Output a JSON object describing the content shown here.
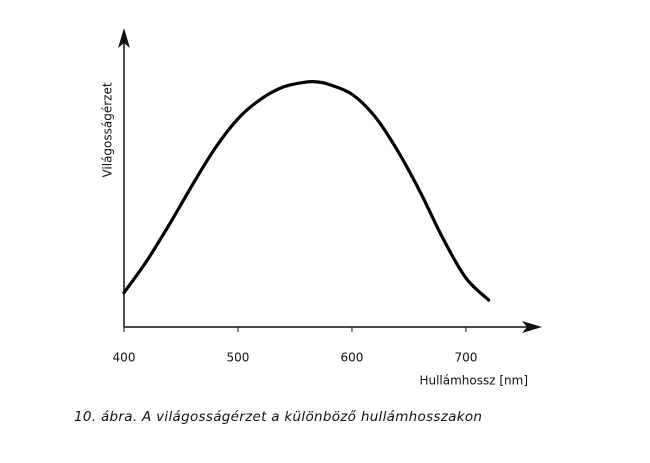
{
  "chart_data": {
    "type": "line",
    "y_label": "Világosságérzet",
    "x_label": "Hullámhossz [nm]",
    "caption": "10. ábra. A világosságérzet a különböző hullámhosszakon",
    "x": [
      400,
      420,
      440,
      460,
      480,
      500,
      520,
      540,
      560,
      570,
      580,
      600,
      620,
      640,
      660,
      680,
      700,
      720
    ],
    "values": [
      0.14,
      0.27,
      0.42,
      0.58,
      0.73,
      0.85,
      0.93,
      0.98,
      1.0,
      1.0,
      0.99,
      0.95,
      0.86,
      0.72,
      0.55,
      0.36,
      0.2,
      0.11
    ],
    "color": "#000000",
    "xlim": [
      400,
      765
    ],
    "xticks": [
      400,
      500,
      600,
      700
    ],
    "ylim": [
      0,
      1
    ]
  }
}
